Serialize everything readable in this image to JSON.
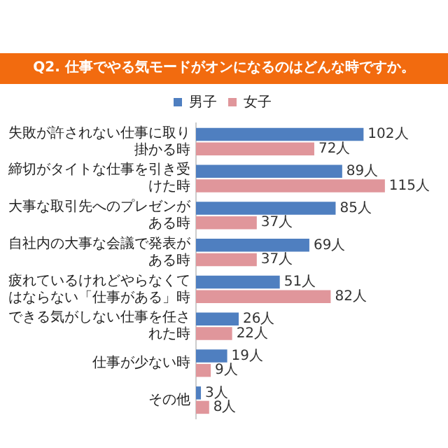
{
  "chart_data": {
    "type": "bar",
    "orientation": "horizontal",
    "title": "Q2. 仕事でやる気モードがオンになるのはどんな時ですか。",
    "categories": [
      "失敗が許されない仕事に取り掛かる時",
      "締切がタイトな仕事を引き受けた時",
      "大事な取引先へのプレゼンがある時",
      "自社内の大事な会議で発表がある時",
      "疲れているけれどやらなくてはならない「仕事がある」時",
      "できる気がしない仕事を任された時",
      "仕事が少ない時",
      "その他"
    ],
    "series": [
      {
        "name": "男子",
        "color": "#4f7fc0",
        "values": [
          102,
          89,
          85,
          69,
          51,
          26,
          19,
          3
        ],
        "value_labels": [
          "102人",
          "89人",
          "85人",
          "69人",
          "51人",
          "26人",
          "19人",
          "3人"
        ]
      },
      {
        "name": "女子",
        "color": "#e0969b",
        "values": [
          72,
          115,
          37,
          37,
          82,
          22,
          9,
          8
        ],
        "value_labels": [
          "72人",
          "115人",
          "37人",
          "37人",
          "82人",
          "22人",
          "9人",
          "8人"
        ]
      }
    ],
    "legend": "top",
    "grid": false
  }
}
